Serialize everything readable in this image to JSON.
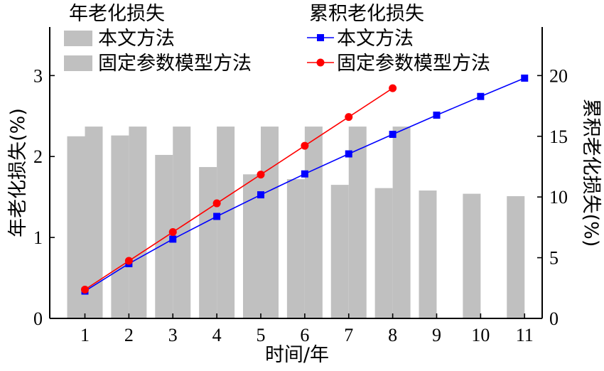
{
  "chart_data": {
    "type": "bar+line",
    "x": [
      1,
      2,
      3,
      4,
      5,
      6,
      7,
      8,
      9,
      10,
      11
    ],
    "xlabel": "时间/年",
    "ylabel_left": "年老化损失(%)",
    "ylabel_right": "累积老化损失(%)",
    "ylim_left": [
      0,
      3.6
    ],
    "ylim_right": [
      0,
      24
    ],
    "xlim": [
      0.2,
      11.4
    ],
    "yticks_left": [
      0,
      1,
      2,
      3
    ],
    "yticks_right": [
      0,
      5,
      10,
      15,
      20
    ],
    "xticks": [
      1,
      2,
      3,
      4,
      5,
      6,
      7,
      8,
      9,
      10,
      11
    ],
    "legend_bar_title": "年老化损失",
    "legend_line_title": "累积老化损失",
    "bar_series": [
      {
        "name": "本文方法",
        "values": [
          2.25,
          2.26,
          2.02,
          1.87,
          1.78,
          1.72,
          1.65,
          1.61,
          1.58,
          1.54,
          1.51
        ],
        "color": "#c0c0c0"
      },
      {
        "name": "固定参数模型方法",
        "values": [
          2.37,
          2.37,
          2.37,
          2.37,
          2.37,
          2.37,
          2.37,
          2.37
        ],
        "color": "#c0c0c0"
      }
    ],
    "line_series": [
      {
        "name": "本文方法",
        "values": [
          2.25,
          4.51,
          6.53,
          8.4,
          10.18,
          11.9,
          13.55,
          15.16,
          16.74,
          18.28,
          19.79
        ],
        "color": "#0000ff",
        "marker": "square"
      },
      {
        "name": "固定参数模型方法",
        "values": [
          2.37,
          4.74,
          7.11,
          9.48,
          11.85,
          14.22,
          16.59,
          18.96
        ],
        "color": "#ff0000",
        "marker": "circle"
      }
    ]
  }
}
